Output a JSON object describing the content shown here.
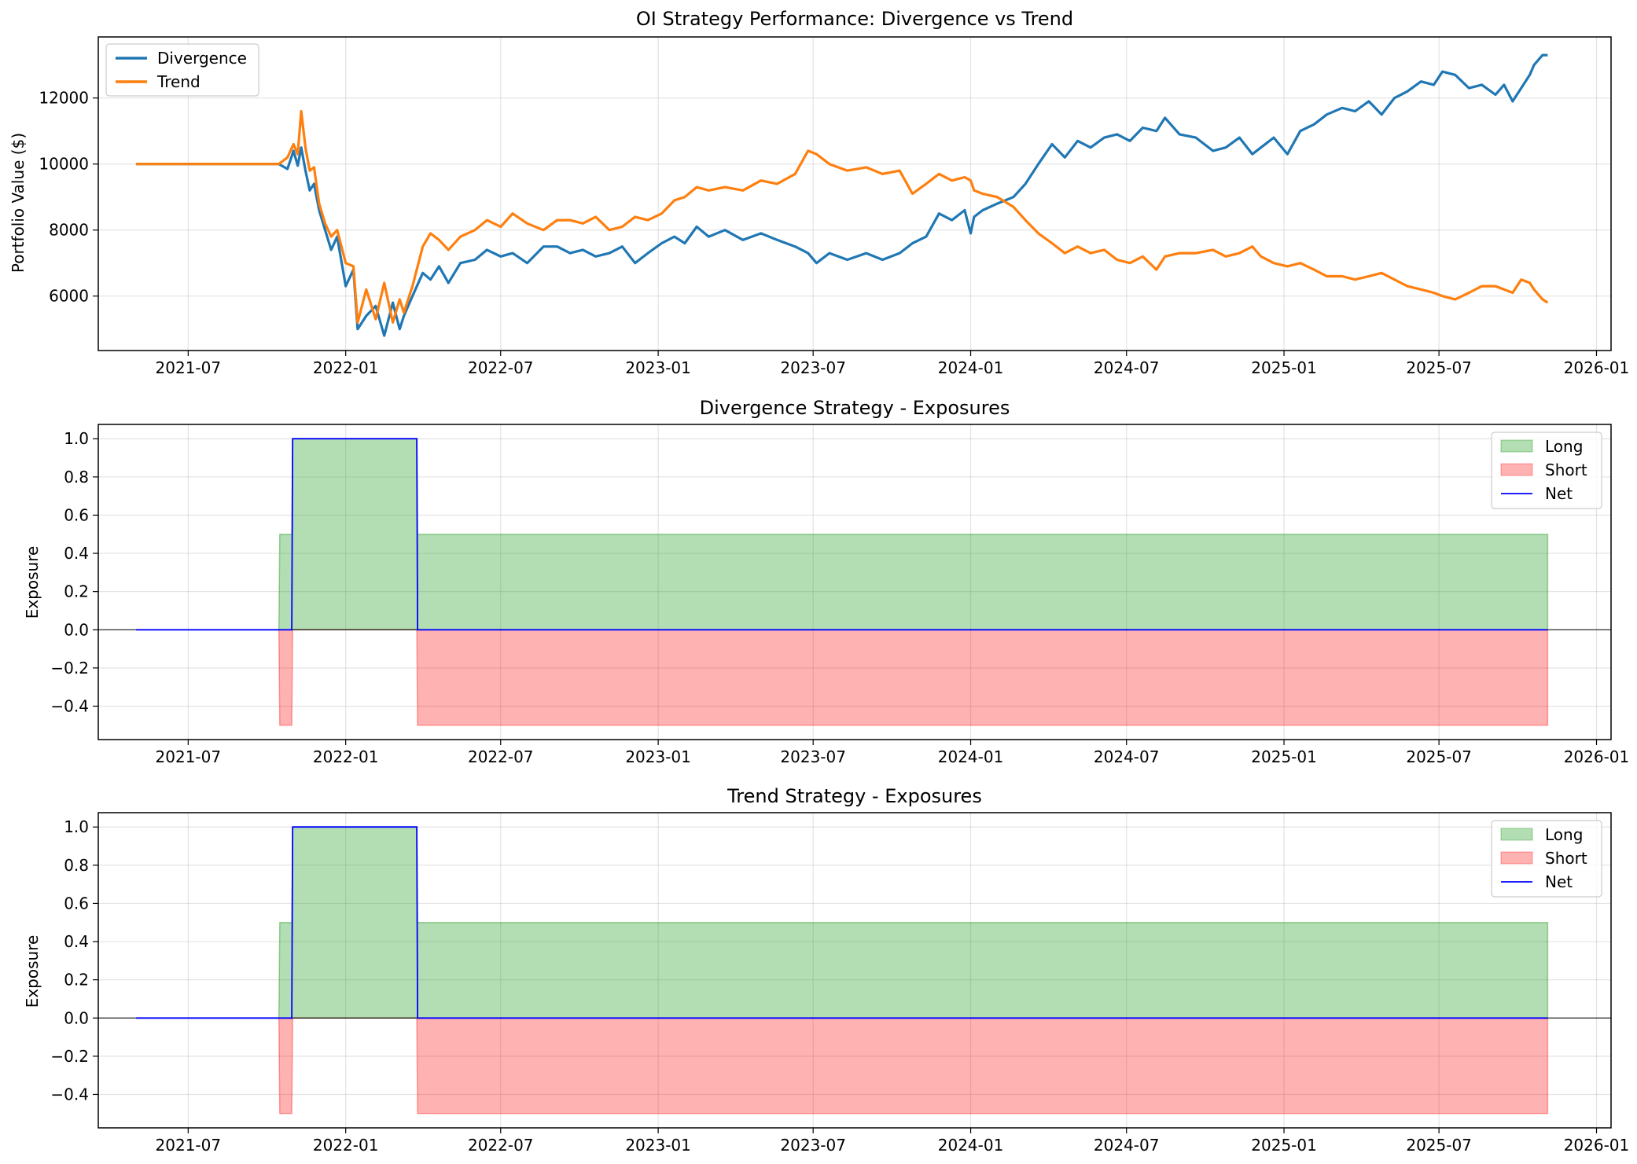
{
  "chart_data": [
    {
      "type": "line",
      "title": "OI Strategy Performance: Divergence vs Trend",
      "xlabel": "",
      "ylabel": "Portfolio Value ($)",
      "x_ticks": [
        "2021-07",
        "2022-01",
        "2022-07",
        "2023-01",
        "2023-07",
        "2024-01",
        "2024-07",
        "2025-01",
        "2025-07",
        "2026-01"
      ],
      "y_ticks": [
        6000,
        8000,
        10000,
        12000
      ],
      "ylim": [
        4350,
        13850
      ],
      "xlim": [
        "2021-03-18",
        "2026-01-18"
      ],
      "grid": true,
      "legend_position": "top-left",
      "colors": {
        "Divergence": "#1f77b4",
        "Trend": "#ff7f0e"
      },
      "series": [
        {
          "name": "Divergence",
          "x": [
            "2021-05-01",
            "2021-10-15",
            "2021-10-25",
            "2021-11-01",
            "2021-11-06",
            "2021-11-10",
            "2021-11-15",
            "2021-11-20",
            "2021-11-25",
            "2021-12-01",
            "2021-12-08",
            "2021-12-15",
            "2021-12-22",
            "2022-01-01",
            "2022-01-10",
            "2022-01-15",
            "2022-01-25",
            "2022-02-05",
            "2022-02-15",
            "2022-02-25",
            "2022-03-05",
            "2022-03-10",
            "2022-03-20",
            "2022-04-01",
            "2022-04-10",
            "2022-04-20",
            "2022-05-01",
            "2022-05-15",
            "2022-06-01",
            "2022-06-15",
            "2022-07-01",
            "2022-07-15",
            "2022-08-01",
            "2022-08-20",
            "2022-09-05",
            "2022-09-20",
            "2022-10-05",
            "2022-10-20",
            "2022-11-05",
            "2022-11-20",
            "2022-12-05",
            "2022-12-20",
            "2023-01-05",
            "2023-01-20",
            "2023-02-01",
            "2023-02-15",
            "2023-03-01",
            "2023-03-20",
            "2023-04-10",
            "2023-05-01",
            "2023-05-20",
            "2023-06-10",
            "2023-06-25",
            "2023-07-05",
            "2023-07-20",
            "2023-08-10",
            "2023-09-01",
            "2023-09-20",
            "2023-10-10",
            "2023-10-25",
            "2023-11-10",
            "2023-11-25",
            "2023-12-10",
            "2023-12-25",
            "2024-01-01",
            "2024-01-05",
            "2024-01-15",
            "2024-02-01",
            "2024-02-20",
            "2024-03-05",
            "2024-03-20",
            "2024-04-05",
            "2024-04-20",
            "2024-05-05",
            "2024-05-20",
            "2024-06-05",
            "2024-06-20",
            "2024-07-05",
            "2024-07-20",
            "2024-08-05",
            "2024-08-15",
            "2024-09-01",
            "2024-09-20",
            "2024-10-10",
            "2024-10-25",
            "2024-11-10",
            "2024-11-25",
            "2024-12-05",
            "2024-12-20",
            "2025-01-05",
            "2025-01-20",
            "2025-02-05",
            "2025-02-20",
            "2025-03-10",
            "2025-03-25",
            "2025-04-10",
            "2025-04-25",
            "2025-05-10",
            "2025-05-25",
            "2025-06-10",
            "2025-06-25",
            "2025-07-05",
            "2025-07-20",
            "2025-08-05",
            "2025-08-20",
            "2025-09-05",
            "2025-09-15",
            "2025-09-25",
            "2025-10-05",
            "2025-10-15",
            "2025-10-20",
            "2025-10-30",
            "2025-11-05"
          ],
          "values": [
            10000,
            10000,
            9850,
            10400,
            9950,
            10500,
            9800,
            9200,
            9400,
            8600,
            8000,
            7400,
            7800,
            6300,
            6800,
            5000,
            5400,
            5700,
            4800,
            5800,
            5000,
            5400,
            6000,
            6700,
            6500,
            6900,
            6400,
            7000,
            7100,
            7400,
            7200,
            7300,
            7000,
            7500,
            7500,
            7300,
            7400,
            7200,
            7300,
            7500,
            7000,
            7300,
            7600,
            7800,
            7600,
            8100,
            7800,
            8000,
            7700,
            7900,
            7700,
            7500,
            7300,
            7000,
            7300,
            7100,
            7300,
            7100,
            7300,
            7600,
            7800,
            8500,
            8300,
            8600,
            7900,
            8400,
            8600,
            8800,
            9000,
            9400,
            10000,
            10600,
            10200,
            10700,
            10500,
            10800,
            10900,
            10700,
            11100,
            11000,
            11400,
            10900,
            10800,
            10400,
            10500,
            10800,
            10300,
            10500,
            10800,
            10300,
            11000,
            11200,
            11500,
            11700,
            11600,
            11900,
            11500,
            12000,
            12200,
            12500,
            12400,
            12800,
            12700,
            12300,
            12400,
            12100,
            12400,
            11900,
            12300,
            12700,
            13000,
            13300,
            13300
          ]
        },
        {
          "name": "Trend",
          "x": [
            "2021-05-01",
            "2021-10-15",
            "2021-10-25",
            "2021-11-01",
            "2021-11-06",
            "2021-11-10",
            "2021-11-15",
            "2021-11-20",
            "2021-11-25",
            "2021-12-01",
            "2021-12-08",
            "2021-12-15",
            "2021-12-22",
            "2022-01-01",
            "2022-01-10",
            "2022-01-15",
            "2022-01-25",
            "2022-02-05",
            "2022-02-15",
            "2022-02-25",
            "2022-03-05",
            "2022-03-10",
            "2022-03-20",
            "2022-04-01",
            "2022-04-10",
            "2022-04-20",
            "2022-05-01",
            "2022-05-15",
            "2022-06-01",
            "2022-06-15",
            "2022-07-01",
            "2022-07-15",
            "2022-08-01",
            "2022-08-20",
            "2022-09-05",
            "2022-09-20",
            "2022-10-05",
            "2022-10-20",
            "2022-11-05",
            "2022-11-20",
            "2022-12-05",
            "2022-12-20",
            "2023-01-05",
            "2023-01-20",
            "2023-02-01",
            "2023-02-15",
            "2023-03-01",
            "2023-03-20",
            "2023-04-10",
            "2023-05-01",
            "2023-05-20",
            "2023-06-10",
            "2023-06-25",
            "2023-07-05",
            "2023-07-20",
            "2023-08-10",
            "2023-09-01",
            "2023-09-20",
            "2023-10-10",
            "2023-10-25",
            "2023-11-10",
            "2023-11-25",
            "2023-12-10",
            "2023-12-25",
            "2024-01-01",
            "2024-01-05",
            "2024-01-15",
            "2024-02-01",
            "2024-02-20",
            "2024-03-05",
            "2024-03-20",
            "2024-04-05",
            "2024-04-20",
            "2024-05-05",
            "2024-05-20",
            "2024-06-05",
            "2024-06-20",
            "2024-07-05",
            "2024-07-20",
            "2024-08-05",
            "2024-08-15",
            "2024-09-01",
            "2024-09-20",
            "2024-10-10",
            "2024-10-25",
            "2024-11-10",
            "2024-11-25",
            "2024-12-05",
            "2024-12-20",
            "2025-01-05",
            "2025-01-20",
            "2025-02-05",
            "2025-02-20",
            "2025-03-10",
            "2025-03-25",
            "2025-04-10",
            "2025-04-25",
            "2025-05-10",
            "2025-05-25",
            "2025-06-10",
            "2025-06-25",
            "2025-07-05",
            "2025-07-20",
            "2025-08-05",
            "2025-08-20",
            "2025-09-05",
            "2025-09-15",
            "2025-09-25",
            "2025-10-05",
            "2025-10-15",
            "2025-10-20",
            "2025-10-30",
            "2025-11-05"
          ],
          "values": [
            10000,
            10000,
            10200,
            10600,
            10300,
            11600,
            10500,
            9800,
            9900,
            8800,
            8200,
            7800,
            8000,
            7000,
            6900,
            5200,
            6200,
            5300,
            6400,
            5200,
            5900,
            5500,
            6300,
            7500,
            7900,
            7700,
            7400,
            7800,
            8000,
            8300,
            8100,
            8500,
            8200,
            8000,
            8300,
            8300,
            8200,
            8400,
            8000,
            8100,
            8400,
            8300,
            8500,
            8900,
            9000,
            9300,
            9200,
            9300,
            9200,
            9500,
            9400,
            9700,
            10400,
            10300,
            10000,
            9800,
            9900,
            9700,
            9800,
            9100,
            9400,
            9700,
            9500,
            9600,
            9500,
            9200,
            9100,
            9000,
            8700,
            8300,
            7900,
            7600,
            7300,
            7500,
            7300,
            7400,
            7100,
            7000,
            7200,
            6800,
            7200,
            7300,
            7300,
            7400,
            7200,
            7300,
            7500,
            7200,
            7000,
            6900,
            7000,
            6800,
            6600,
            6600,
            6500,
            6600,
            6700,
            6500,
            6300,
            6200,
            6100,
            6000,
            5900,
            6100,
            6300,
            6300,
            6200,
            6100,
            6500,
            6400,
            6200,
            5900,
            5800
          ]
        }
      ]
    },
    {
      "type": "area",
      "title": "Divergence Strategy - Exposures",
      "xlabel": "",
      "ylabel": "Exposure",
      "x_ticks": [
        "2021-07",
        "2022-01",
        "2022-07",
        "2023-01",
        "2023-07",
        "2024-01",
        "2024-07",
        "2025-01",
        "2025-07",
        "2026-01"
      ],
      "y_ticks": [
        "−0.4",
        "−0.2",
        "0.0",
        "0.2",
        "0.4",
        "0.6",
        "0.8",
        "1.0"
      ],
      "ylim": [
        -0.575,
        1.075
      ],
      "xlim": [
        "2021-03-18",
        "2026-01-18"
      ],
      "grid": true,
      "legend_position": "top-right",
      "colors": {
        "Long": "#2ca02c",
        "Short": "#ff0000",
        "Net": "#0000ff"
      },
      "series": [
        {
          "name": "Long",
          "x": [
            "2021-05-01",
            "2021-10-15",
            "2021-10-16",
            "2021-10-30",
            "2021-10-31",
            "2022-03-25",
            "2022-03-26",
            "2025-11-05"
          ],
          "values": [
            0,
            0,
            0.5,
            0.5,
            1.0,
            1.0,
            0.5,
            0.5
          ]
        },
        {
          "name": "Short",
          "x": [
            "2021-05-01",
            "2021-10-15",
            "2021-10-16",
            "2021-10-30",
            "2021-10-31",
            "2022-03-25",
            "2022-03-26",
            "2025-11-05"
          ],
          "values": [
            0,
            0,
            -0.5,
            -0.5,
            0,
            0,
            -0.5,
            -0.5
          ]
        },
        {
          "name": "Net",
          "x": [
            "2021-05-01",
            "2021-10-30",
            "2021-10-31",
            "2022-03-25",
            "2022-03-26",
            "2025-11-05"
          ],
          "values": [
            0,
            0,
            1.0,
            1.0,
            0,
            0
          ]
        }
      ]
    },
    {
      "type": "area",
      "title": "Trend Strategy - Exposures",
      "xlabel": "",
      "ylabel": "Exposure",
      "x_ticks": [
        "2021-07",
        "2022-01",
        "2022-07",
        "2023-01",
        "2023-07",
        "2024-01",
        "2024-07",
        "2025-01",
        "2025-07",
        "2026-01"
      ],
      "y_ticks": [
        "−0.4",
        "−0.2",
        "0.0",
        "0.2",
        "0.4",
        "0.6",
        "0.8",
        "1.0"
      ],
      "ylim": [
        -0.575,
        1.075
      ],
      "xlim": [
        "2021-03-18",
        "2026-01-18"
      ],
      "grid": true,
      "legend_position": "top-right",
      "colors": {
        "Long": "#2ca02c",
        "Short": "#ff0000",
        "Net": "#0000ff"
      },
      "series": [
        {
          "name": "Long",
          "x": [
            "2021-05-01",
            "2021-10-15",
            "2021-10-16",
            "2021-10-30",
            "2021-10-31",
            "2022-03-25",
            "2022-03-26",
            "2025-11-05"
          ],
          "values": [
            0,
            0,
            0.5,
            0.5,
            1.0,
            1.0,
            0.5,
            0.5
          ]
        },
        {
          "name": "Short",
          "x": [
            "2021-05-01",
            "2021-10-15",
            "2021-10-16",
            "2021-10-30",
            "2021-10-31",
            "2022-03-25",
            "2022-03-26",
            "2025-11-05"
          ],
          "values": [
            0,
            0,
            -0.5,
            -0.5,
            0,
            0,
            -0.5,
            -0.5
          ]
        },
        {
          "name": "Net",
          "x": [
            "2021-05-01",
            "2021-10-30",
            "2021-10-31",
            "2022-03-25",
            "2022-03-26",
            "2025-11-05"
          ],
          "values": [
            0,
            0,
            1.0,
            1.0,
            0,
            0
          ]
        }
      ]
    }
  ]
}
